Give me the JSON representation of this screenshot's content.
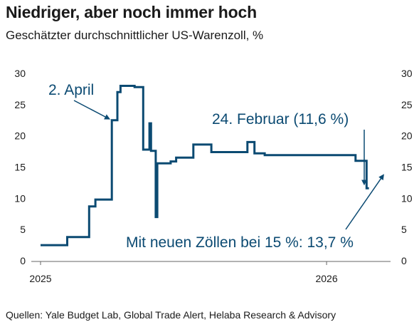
{
  "title": "Niedriger, aber noch immer hoch",
  "subtitle": "Geschätzter durchschnittlicher US-Warenzoll, %",
  "source": "Quellen: Yale Budget Lab, Global Trade Alert, Helaba Research & Advisory",
  "colors": {
    "line": "#0b4a72",
    "text": "#1a1a1a",
    "axis": "#666666"
  },
  "chart_data": {
    "type": "line",
    "title": "Niedriger, aber noch immer hoch",
    "subtitle": "Geschätzter durchschnittlicher US-Warenzoll, %",
    "ylim": [
      0,
      30
    ],
    "yticks": [
      0,
      5,
      10,
      15,
      20,
      25,
      30
    ],
    "ytick_labels": [
      "0",
      "5",
      "10",
      "15",
      "20",
      "25",
      "30"
    ],
    "y_axis_both_sides": true,
    "xlim": [
      "2025-01-01",
      "2026-03-20"
    ],
    "xticks": [
      "2025-01-01",
      "2026-01-01"
    ],
    "xtick_labels": [
      "2025",
      "2026"
    ],
    "grid": false,
    "series": [
      {
        "step": true,
        "points": [
          [
            "2025-01-01",
            2.5
          ],
          [
            "2025-02-04",
            3.8
          ],
          [
            "2025-03-04",
            8.7
          ],
          [
            "2025-03-12",
            9.8
          ],
          [
            "2025-04-02",
            22.5
          ],
          [
            "2025-04-09",
            27.0
          ],
          [
            "2025-04-13",
            28.0
          ],
          [
            "2025-05-01",
            27.8
          ],
          [
            "2025-05-12",
            17.8
          ],
          [
            "2025-05-20",
            22.0
          ],
          [
            "2025-05-22",
            17.6
          ],
          [
            "2025-05-28",
            7.0
          ],
          [
            "2025-05-30",
            15.6
          ],
          [
            "2025-06-16",
            15.9
          ],
          [
            "2025-06-23",
            16.5
          ],
          [
            "2025-07-15",
            18.6
          ],
          [
            "2025-08-07",
            17.4
          ],
          [
            "2025-09-22",
            19.0
          ],
          [
            "2025-10-01",
            17.2
          ],
          [
            "2025-10-14",
            16.9
          ],
          [
            "2026-02-07",
            16.0
          ],
          [
            "2026-02-21",
            11.6
          ],
          [
            "2026-02-24",
            11.6
          ]
        ]
      }
    ],
    "annotations": [
      {
        "text": "2. April",
        "date": "2025-04-02",
        "value": 22.5
      },
      {
        "text": "24. Februar (11,6 %)",
        "date": "2026-02-24",
        "value": 11.6
      },
      {
        "text": "Mit neuen Zöllen bei 15 %: 13,7 %",
        "date": "2026-03-18",
        "value": 13.7
      }
    ]
  }
}
